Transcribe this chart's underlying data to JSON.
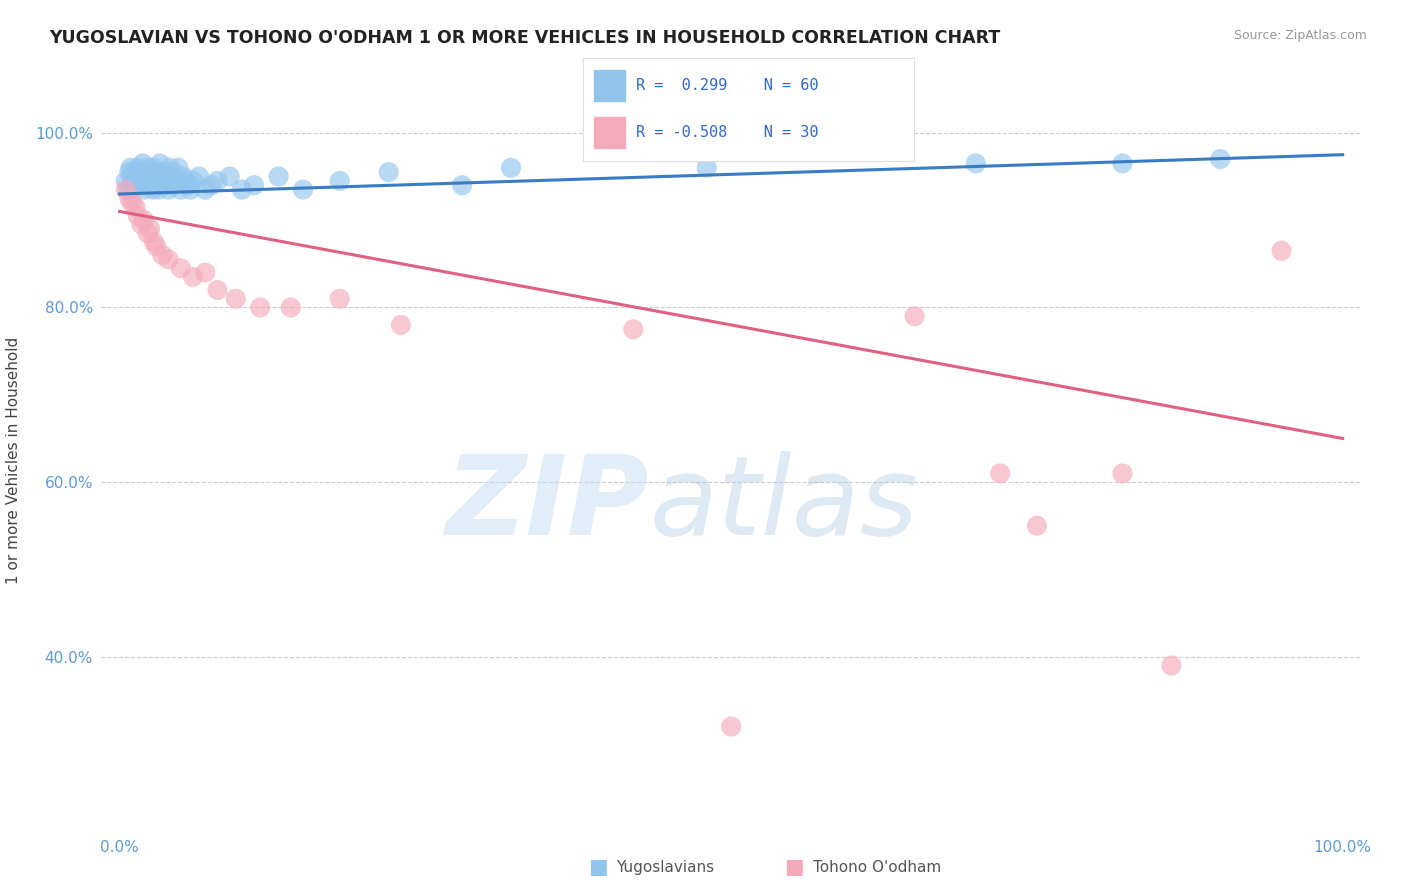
{
  "title": "YUGOSLAVIAN VS TOHONO O'ODHAM 1 OR MORE VEHICLES IN HOUSEHOLD CORRELATION CHART",
  "source": "Source: ZipAtlas.com",
  "ylabel": "1 or more Vehicles in Household",
  "blue_color": "#92C5EE",
  "pink_color": "#F4AABB",
  "line_blue": "#3A7CC3",
  "line_pink": "#E06080",
  "background": "#ffffff",
  "xlim": [
    0.0,
    1.0
  ],
  "ylim": [
    0.2,
    1.05
  ],
  "yticks": [
    0.4,
    0.6,
    0.8,
    1.0
  ],
  "ytick_labels": [
    "40.0%",
    "60.0%",
    "80.0%",
    "100.0%"
  ],
  "xtick_labels": [
    "0.0%",
    "100.0%"
  ],
  "legend_blue_r": "R =  0.299",
  "legend_blue_n": "N = 60",
  "legend_pink_r": "R = -0.508",
  "legend_pink_n": "N = 30",
  "xlabel_bottom_blue": "Yugoslavians",
  "xlabel_bottom_pink": "Tohono O'odham",
  "blue_trend_start_y": 0.93,
  "blue_trend_end_y": 0.975,
  "pink_trend_start_y": 0.91,
  "pink_trend_end_y": 0.65,
  "blue_x": [
    0.005,
    0.007,
    0.008,
    0.009,
    0.01,
    0.011,
    0.012,
    0.013,
    0.015,
    0.016,
    0.017,
    0.018,
    0.019,
    0.02,
    0.021,
    0.022,
    0.023,
    0.024,
    0.025,
    0.026,
    0.027,
    0.028,
    0.03,
    0.031,
    0.032,
    0.033,
    0.035,
    0.036,
    0.037,
    0.038,
    0.04,
    0.041,
    0.042,
    0.043,
    0.044,
    0.046,
    0.048,
    0.05,
    0.052,
    0.054,
    0.056,
    0.058,
    0.06,
    0.065,
    0.07,
    0.075,
    0.08,
    0.09,
    0.1,
    0.11,
    0.13,
    0.15,
    0.18,
    0.22,
    0.28,
    0.32,
    0.48,
    0.7,
    0.82,
    0.9
  ],
  "blue_y": [
    0.945,
    0.935,
    0.955,
    0.96,
    0.95,
    0.94,
    0.955,
    0.945,
    0.96,
    0.95,
    0.94,
    0.955,
    0.965,
    0.935,
    0.945,
    0.955,
    0.96,
    0.95,
    0.94,
    0.955,
    0.935,
    0.96,
    0.945,
    0.955,
    0.935,
    0.965,
    0.94,
    0.95,
    0.945,
    0.955,
    0.935,
    0.96,
    0.95,
    0.94,
    0.955,
    0.945,
    0.96,
    0.935,
    0.95,
    0.945,
    0.94,
    0.935,
    0.945,
    0.95,
    0.935,
    0.94,
    0.945,
    0.95,
    0.935,
    0.94,
    0.95,
    0.935,
    0.945,
    0.955,
    0.94,
    0.96,
    0.96,
    0.965,
    0.965,
    0.97
  ],
  "pink_x": [
    0.005,
    0.008,
    0.01,
    0.013,
    0.015,
    0.018,
    0.02,
    0.023,
    0.025,
    0.028,
    0.03,
    0.035,
    0.04,
    0.05,
    0.06,
    0.07,
    0.08,
    0.095,
    0.115,
    0.14,
    0.18,
    0.23,
    0.42,
    0.5,
    0.65,
    0.72,
    0.75,
    0.82,
    0.86,
    0.95
  ],
  "pink_y": [
    0.935,
    0.925,
    0.92,
    0.915,
    0.905,
    0.895,
    0.9,
    0.885,
    0.89,
    0.875,
    0.87,
    0.86,
    0.855,
    0.845,
    0.835,
    0.84,
    0.82,
    0.81,
    0.8,
    0.8,
    0.81,
    0.78,
    0.775,
    0.32,
    0.79,
    0.61,
    0.55,
    0.61,
    0.39,
    0.865
  ]
}
